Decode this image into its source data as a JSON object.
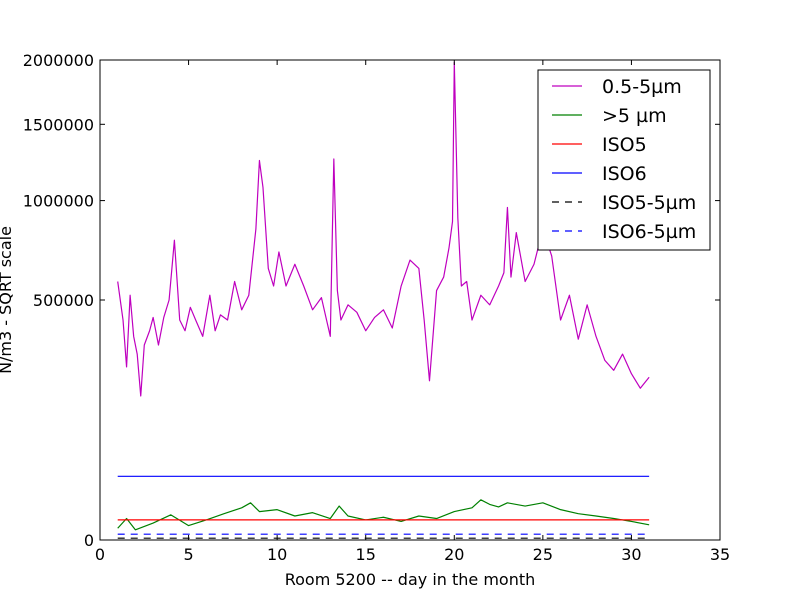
{
  "chart_data": {
    "type": "line",
    "xlabel": "Room 5200 -- day in the month",
    "ylabel": "N/m3 - SQRT scale",
    "y_scale": "sqrt",
    "xlim": [
      0,
      35
    ],
    "ylim": [
      0,
      2000000
    ],
    "x_ticks": [
      0,
      5,
      10,
      15,
      20,
      25,
      30,
      35
    ],
    "x_tick_labels": [
      "0",
      "5",
      "10",
      "15",
      "20",
      "25",
      "30",
      "35"
    ],
    "y_ticks": [
      0,
      500000,
      1000000,
      1500000,
      2000000
    ],
    "y_tick_labels": [
      "0",
      "500000",
      "1000000",
      "1500000",
      "2000000"
    ],
    "legend_position": "top-right",
    "grid": false,
    "series": [
      {
        "name": "0.5-5µm",
        "color": "#bf00bf",
        "style": "solid",
        "x": [
          1.0,
          1.3,
          1.5,
          1.7,
          1.9,
          2.1,
          2.3,
          2.5,
          2.8,
          3.0,
          3.3,
          3.6,
          3.9,
          4.2,
          4.5,
          4.8,
          5.1,
          5.4,
          5.8,
          6.2,
          6.5,
          6.8,
          7.2,
          7.6,
          8.0,
          8.4,
          8.8,
          9.0,
          9.2,
          9.5,
          9.8,
          10.1,
          10.5,
          11.0,
          11.5,
          12.0,
          12.5,
          13.0,
          13.2,
          13.4,
          13.6,
          14.0,
          14.5,
          15.0,
          15.5,
          16.0,
          16.5,
          17.0,
          17.5,
          18.0,
          18.3,
          18.6,
          19.0,
          19.4,
          19.7,
          19.9,
          20.0,
          20.2,
          20.4,
          20.7,
          21.0,
          21.5,
          22.0,
          22.5,
          22.8,
          23.0,
          23.2,
          23.5,
          24.0,
          24.5,
          25.0,
          25.5,
          26.0,
          26.5,
          27.0,
          27.5,
          28.0,
          28.5,
          29.0,
          29.5,
          30.0,
          30.5,
          31.0
        ],
        "y": [
          580000,
          420000,
          260000,
          520000,
          360000,
          300000,
          180000,
          330000,
          380000,
          430000,
          330000,
          430000,
          500000,
          780000,
          420000,
          380000,
          470000,
          420000,
          360000,
          520000,
          380000,
          440000,
          420000,
          580000,
          460000,
          520000,
          840000,
          1250000,
          1080000,
          640000,
          560000,
          720000,
          560000,
          660000,
          560000,
          460000,
          510000,
          360000,
          1260000,
          540000,
          420000,
          480000,
          450000,
          380000,
          430000,
          460000,
          390000,
          560000,
          680000,
          640000,
          420000,
          220000,
          540000,
          600000,
          740000,
          880000,
          1980000,
          900000,
          560000,
          580000,
          420000,
          520000,
          480000,
          560000,
          620000,
          960000,
          600000,
          820000,
          580000,
          660000,
          840000,
          700000,
          420000,
          520000,
          350000,
          480000,
          360000,
          280000,
          250000,
          300000,
          240000,
          200000,
          230000
        ]
      },
      {
        "name": ">5 µm",
        "color": "#008000",
        "style": "solid",
        "x": [
          1.0,
          1.5,
          2.0,
          3.0,
          4.0,
          5.0,
          6.0,
          7.0,
          8.0,
          8.5,
          9.0,
          10.0,
          11.0,
          12.0,
          13.0,
          13.5,
          14.0,
          15.0,
          16.0,
          17.0,
          18.0,
          19.0,
          20.0,
          21.0,
          21.5,
          22.0,
          22.5,
          23.0,
          24.0,
          25.0,
          26.0,
          27.0,
          28.0,
          29.0,
          30.0,
          31.0
        ],
        "y": [
          1200,
          4000,
          900,
          2500,
          5500,
          1800,
          3500,
          6000,
          9000,
          12000,
          7000,
          8000,
          5000,
          6500,
          4000,
          10000,
          5000,
          3500,
          4500,
          3000,
          5000,
          4000,
          7000,
          9000,
          14000,
          11000,
          9500,
          12000,
          10000,
          12000,
          8000,
          6000,
          5000,
          4000,
          3000,
          2000
        ]
      },
      {
        "name": "ISO5",
        "color": "#ff0000",
        "style": "solid",
        "x": [
          1.0,
          31.0
        ],
        "y": [
          3520,
          3520
        ]
      },
      {
        "name": "ISO6",
        "color": "#0000ff",
        "style": "solid",
        "x": [
          1.0,
          31.0
        ],
        "y": [
          35200,
          35200
        ]
      },
      {
        "name": "ISO5-5µm",
        "color": "#000000",
        "style": "dashed",
        "x": [
          1.0,
          31.0
        ],
        "y": [
          29,
          29
        ]
      },
      {
        "name": "ISO6-5µm",
        "color": "#0000ff",
        "style": "dashed",
        "x": [
          1.0,
          31.0
        ],
        "y": [
          293,
          293
        ]
      }
    ]
  }
}
